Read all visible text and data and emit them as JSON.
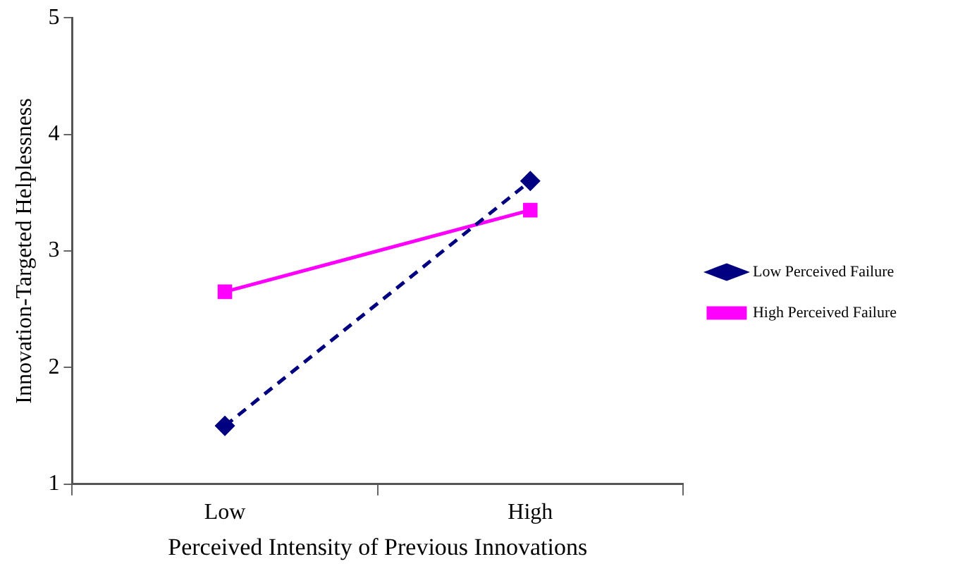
{
  "chart_data": {
    "type": "line",
    "xlabel": "Perceived Intensity of Previous Innovations",
    "ylabel": "Innovation-Targeted Helplessness",
    "categories": [
      "Low",
      "High"
    ],
    "series": [
      {
        "name": "Low Perceived Failure",
        "color": "#000080",
        "values": [
          1.5,
          3.6
        ],
        "marker": "diamond",
        "line_style": "dashed"
      },
      {
        "name": "High Perceived Failure",
        "color": "#ff00ff",
        "values": [
          2.65,
          3.35
        ],
        "marker": "square",
        "line_style": "solid"
      }
    ],
    "ylim": [
      1,
      5
    ],
    "yticks": [
      1,
      2,
      3,
      4,
      5
    ],
    "grid": false,
    "legend": "right"
  }
}
